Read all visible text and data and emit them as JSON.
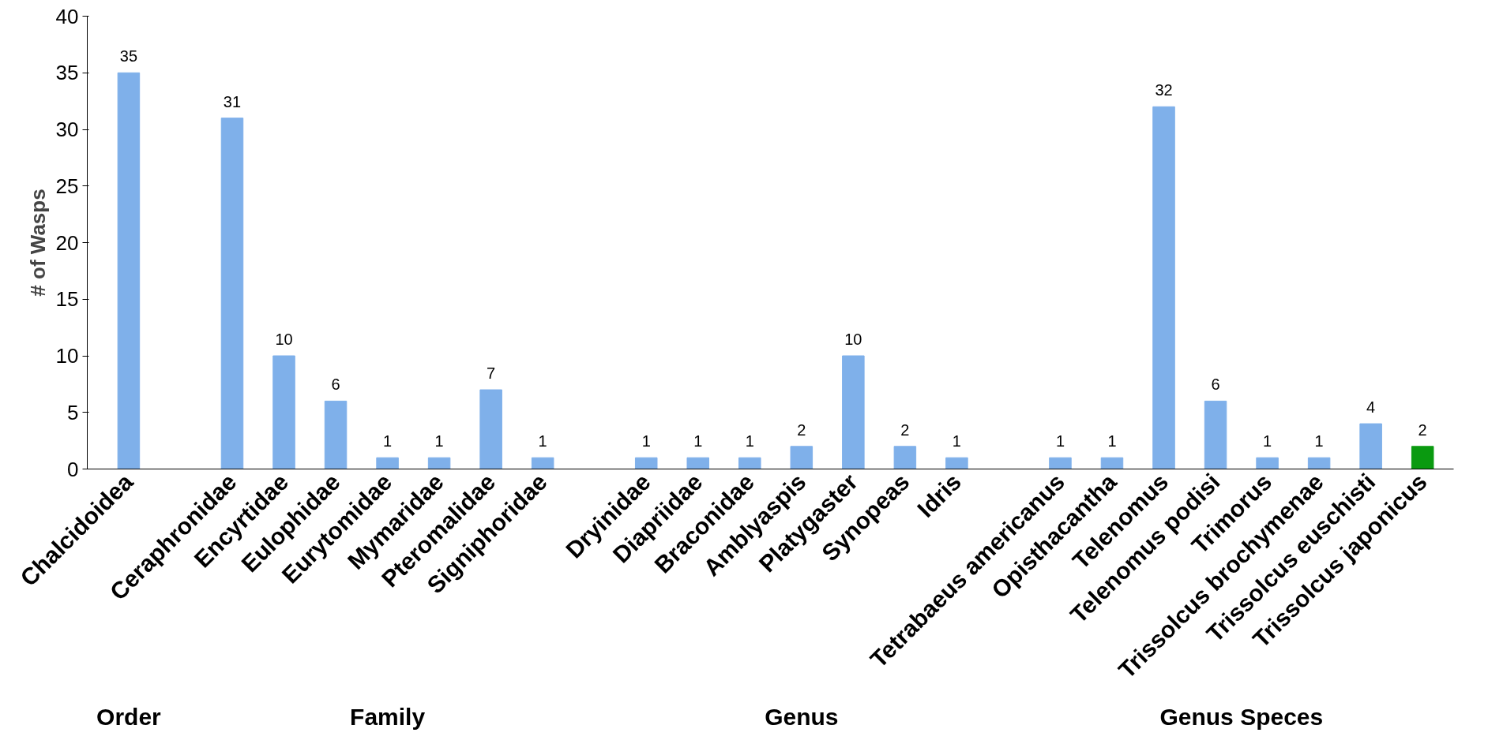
{
  "chart_data": {
    "type": "bar",
    "ylabel": "# of Wasps",
    "categories": [
      "Chalcidoidea",
      null,
      "Ceraphronidae",
      "Encyrtidae",
      "Eulophidae",
      "Eurytomidae",
      "Mymaridae",
      "Pteromalidae",
      "Signiphoridae",
      null,
      "Dryinidae",
      "Diapriidae",
      "Braconidae",
      "Amblyaspis",
      "Platygaster",
      "Synopeas",
      "Idris",
      null,
      "Tetrabaeus americanus",
      "Opisthacantha",
      "Telenomus",
      "Telenomus podisi",
      "Trimorus",
      "Trissolcus brochymenae",
      "Trissolcus euschisti",
      "Trissolcus japonicus"
    ],
    "values": [
      35,
      null,
      31,
      10,
      6,
      1,
      1,
      7,
      1,
      null,
      1,
      1,
      1,
      2,
      10,
      2,
      1,
      null,
      1,
      1,
      32,
      6,
      1,
      1,
      4,
      2
    ],
    "colors": [
      "#7fb0ea",
      null,
      "#7fb0ea",
      "#7fb0ea",
      "#7fb0ea",
      "#7fb0ea",
      "#7fb0ea",
      "#7fb0ea",
      "#7fb0ea",
      null,
      "#7fb0ea",
      "#7fb0ea",
      "#7fb0ea",
      "#7fb0ea",
      "#7fb0ea",
      "#7fb0ea",
      "#7fb0ea",
      null,
      "#7fb0ea",
      "#7fb0ea",
      "#7fb0ea",
      "#7fb0ea",
      "#7fb0ea",
      "#7fb0ea",
      "#7fb0ea",
      "#0a9a10"
    ],
    "ylim": [
      0,
      40
    ],
    "yticks": [
      0,
      5,
      10,
      15,
      20,
      25,
      30,
      35,
      40
    ],
    "grid": false,
    "data_labels": true,
    "annotations": [
      "Order",
      "Family",
      "Genus",
      "Genus Speces"
    ]
  }
}
